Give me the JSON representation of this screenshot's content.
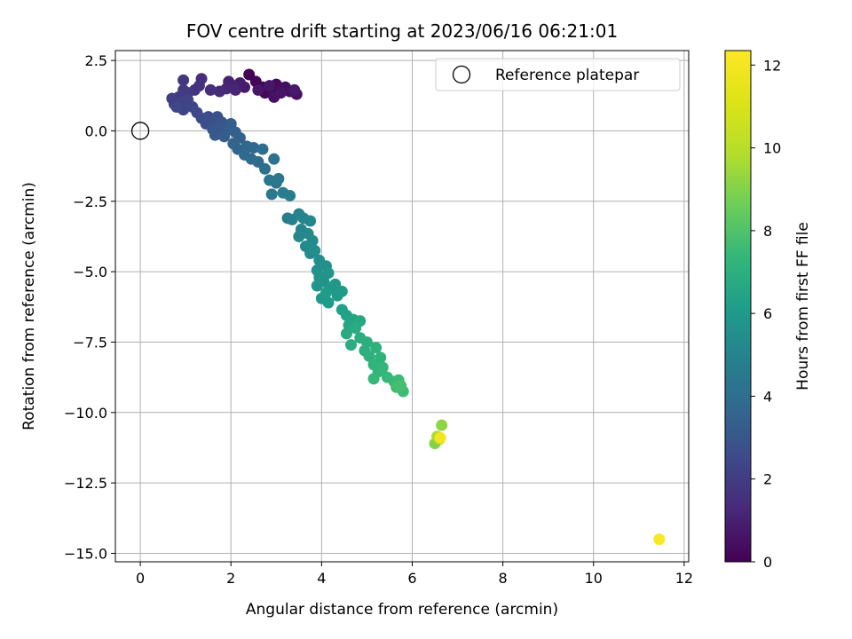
{
  "chart_data": {
    "type": "scatter",
    "title": "FOV centre drift starting at 2023/06/16 06:21:01",
    "xlabel": "Angular distance from reference (arcmin)",
    "ylabel": "Rotation from reference (arcmin)",
    "xlim": [
      -0.55,
      12.1
    ],
    "ylim": [
      -15.3,
      2.85
    ],
    "x_ticks": [
      0,
      2,
      4,
      6,
      8,
      10,
      12
    ],
    "y_ticks": [
      2.5,
      0.0,
      -2.5,
      -5.0,
      -7.5,
      -10.0,
      -12.5,
      -15.0
    ],
    "x_tick_labels": [
      "0",
      "2",
      "4",
      "6",
      "8",
      "10",
      "12"
    ],
    "y_tick_labels": [
      "2.5",
      "0.0",
      "−2.5",
      "−5.0",
      "−7.5",
      "−10.0",
      "−12.5",
      "−15.0"
    ],
    "grid": true,
    "legend": {
      "placement": "upper-right",
      "entries": [
        "Reference platepar"
      ]
    },
    "reference_point": {
      "x": 0.0,
      "y": 0.0,
      "marker": "open-circle"
    },
    "colorbar": {
      "label": "Hours from first FF file",
      "colormap": "viridis",
      "range": [
        0,
        12.35
      ],
      "ticks": [
        0,
        2,
        4,
        6,
        8,
        10,
        12
      ],
      "tick_labels": [
        "0",
        "2",
        "4",
        "6",
        "8",
        "10",
        "12"
      ]
    },
    "series": [
      {
        "values": [
          [
            2.4,
            2.0,
            0.05
          ],
          [
            2.55,
            1.75,
            0.1
          ],
          [
            2.7,
            1.55,
            0.15
          ],
          [
            2.75,
            1.35,
            0.2
          ],
          [
            2.9,
            1.45,
            0.25
          ],
          [
            3.0,
            1.65,
            0.3
          ],
          [
            3.1,
            1.5,
            0.35
          ],
          [
            3.2,
            1.55,
            0.4
          ],
          [
            3.3,
            1.4,
            0.45
          ],
          [
            3.45,
            1.3,
            0.5
          ],
          [
            2.95,
            1.2,
            0.55
          ],
          [
            3.1,
            1.35,
            0.6
          ],
          [
            2.6,
            1.45,
            0.65
          ],
          [
            2.85,
            1.6,
            0.7
          ],
          [
            3.4,
            1.45,
            0.75
          ],
          [
            2.3,
            1.55,
            0.8
          ],
          [
            2.2,
            1.7,
            0.9
          ],
          [
            2.05,
            1.6,
            1.0
          ],
          [
            1.95,
            1.75,
            1.05
          ],
          [
            2.1,
            1.45,
            1.1
          ],
          [
            1.9,
            1.5,
            1.15
          ],
          [
            1.75,
            1.4,
            1.3
          ],
          [
            1.55,
            1.45,
            1.45
          ],
          [
            1.35,
            1.85,
            1.5
          ],
          [
            1.3,
            1.6,
            1.6
          ],
          [
            1.2,
            1.45,
            1.7
          ],
          [
            1.05,
            1.35,
            1.75
          ],
          [
            0.95,
            1.8,
            1.8
          ],
          [
            0.95,
            1.45,
            1.9
          ],
          [
            0.85,
            1.2,
            2.0
          ],
          [
            0.7,
            1.15,
            2.05
          ],
          [
            0.75,
            0.95,
            2.1
          ],
          [
            0.9,
            1.0,
            2.2
          ],
          [
            1.05,
            1.1,
            2.25
          ],
          [
            0.95,
            0.75,
            2.3
          ],
          [
            1.15,
            0.85,
            2.35
          ],
          [
            0.8,
            0.85,
            2.4
          ],
          [
            1.25,
            0.65,
            2.45
          ],
          [
            1.35,
            0.45,
            2.5
          ],
          [
            1.5,
            0.5,
            2.6
          ],
          [
            1.6,
            0.35,
            2.7
          ],
          [
            1.45,
            0.25,
            2.75
          ],
          [
            1.7,
            0.5,
            2.8
          ],
          [
            1.8,
            0.3,
            2.9
          ],
          [
            1.6,
            0.05,
            3.0
          ],
          [
            1.75,
            0.1,
            3.05
          ],
          [
            1.65,
            -0.15,
            3.1
          ],
          [
            1.9,
            0.0,
            3.2
          ],
          [
            2.0,
            0.25,
            3.25
          ],
          [
            1.85,
            -0.2,
            3.3
          ],
          [
            2.1,
            -0.05,
            3.4
          ],
          [
            2.2,
            -0.25,
            3.5
          ],
          [
            2.05,
            -0.45,
            3.55
          ],
          [
            2.15,
            -0.65,
            3.6
          ],
          [
            2.35,
            -0.55,
            3.65
          ],
          [
            2.5,
            -0.6,
            3.7
          ],
          [
            2.3,
            -0.85,
            3.8
          ],
          [
            2.45,
            -1.0,
            3.85
          ],
          [
            2.6,
            -1.1,
            3.9
          ],
          [
            2.7,
            -0.65,
            4.0
          ],
          [
            2.75,
            -1.35,
            4.1
          ],
          [
            2.95,
            -1.0,
            4.2
          ],
          [
            2.85,
            -1.75,
            4.3
          ],
          [
            3.0,
            -1.85,
            4.35
          ],
          [
            3.05,
            -1.7,
            4.4
          ],
          [
            2.9,
            -2.25,
            4.5
          ],
          [
            3.15,
            -2.2,
            4.6
          ],
          [
            3.3,
            -2.3,
            4.7
          ],
          [
            3.25,
            -3.1,
            4.8
          ],
          [
            3.35,
            -3.15,
            4.9
          ],
          [
            3.5,
            -2.95,
            5.0
          ],
          [
            3.6,
            -3.1,
            5.05
          ],
          [
            3.75,
            -3.2,
            5.1
          ],
          [
            3.55,
            -3.5,
            5.15
          ],
          [
            3.5,
            -3.75,
            5.2
          ],
          [
            3.7,
            -3.65,
            5.25
          ],
          [
            3.65,
            -4.1,
            5.3
          ],
          [
            3.8,
            -3.9,
            5.35
          ],
          [
            3.75,
            -4.35,
            5.4
          ],
          [
            3.85,
            -4.25,
            5.45
          ],
          [
            3.95,
            -4.6,
            5.5
          ],
          [
            3.9,
            -4.95,
            5.55
          ],
          [
            4.1,
            -4.8,
            5.6
          ],
          [
            3.95,
            -5.2,
            5.65
          ],
          [
            4.05,
            -5.35,
            5.7
          ],
          [
            4.15,
            -5.05,
            5.75
          ],
          [
            3.9,
            -5.5,
            5.8
          ],
          [
            4.2,
            -5.6,
            5.85
          ],
          [
            4.3,
            -5.45,
            5.9
          ],
          [
            4.0,
            -5.95,
            5.95
          ],
          [
            4.15,
            -6.1,
            6.0
          ],
          [
            4.35,
            -5.85,
            6.05
          ],
          [
            4.45,
            -5.7,
            6.1
          ],
          [
            4.1,
            -5.75,
            6.15
          ],
          [
            4.45,
            -6.35,
            6.25
          ],
          [
            4.55,
            -6.55,
            6.35
          ],
          [
            4.7,
            -6.7,
            6.45
          ],
          [
            4.6,
            -6.9,
            6.55
          ],
          [
            4.85,
            -6.75,
            6.6
          ],
          [
            4.55,
            -7.2,
            6.7
          ],
          [
            4.75,
            -7.0,
            6.8
          ],
          [
            4.65,
            -7.6,
            6.85
          ],
          [
            4.85,
            -7.35,
            6.9
          ],
          [
            5.0,
            -7.5,
            6.95
          ],
          [
            4.95,
            -7.8,
            7.0
          ],
          [
            5.05,
            -8.0,
            7.05
          ],
          [
            5.2,
            -7.7,
            7.1
          ],
          [
            5.3,
            -8.05,
            7.15
          ],
          [
            5.15,
            -8.3,
            7.2
          ],
          [
            5.25,
            -8.55,
            7.3
          ],
          [
            5.35,
            -8.4,
            7.35
          ],
          [
            5.15,
            -8.8,
            7.4
          ],
          [
            5.45,
            -8.75,
            7.45
          ],
          [
            5.6,
            -8.9,
            7.5
          ],
          [
            5.7,
            -8.85,
            7.55
          ],
          [
            5.8,
            -9.25,
            7.6
          ],
          [
            5.65,
            -9.1,
            7.7
          ],
          [
            5.75,
            -9.05,
            7.8
          ],
          [
            6.5,
            -11.1,
            9.0
          ],
          [
            6.65,
            -10.45,
            9.2
          ],
          [
            6.6,
            -10.95,
            9.5
          ],
          [
            6.55,
            -10.85,
            9.7
          ],
          [
            6.62,
            -10.9,
            11.9
          ],
          [
            11.45,
            -14.5,
            12.2
          ]
        ]
      }
    ]
  }
}
